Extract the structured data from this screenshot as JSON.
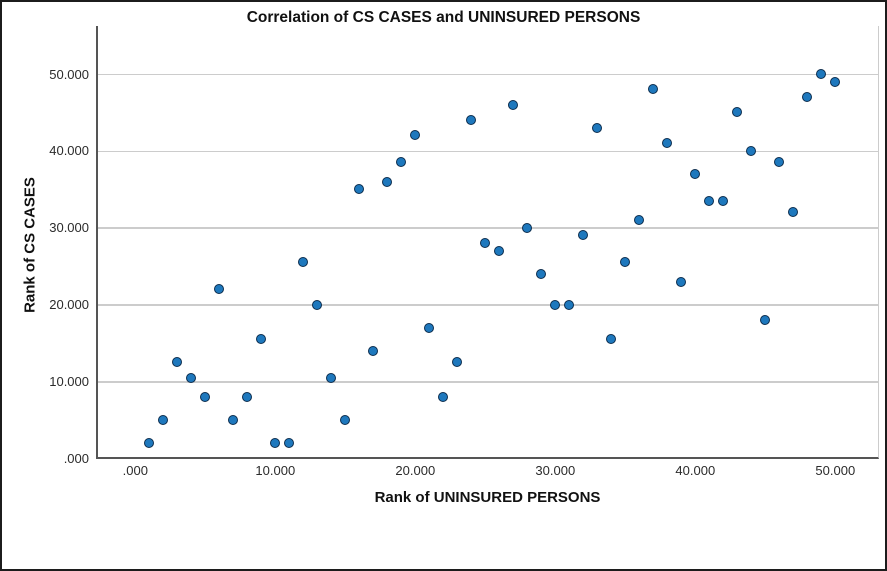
{
  "chart_data": {
    "type": "scatter",
    "title": "Correlation of CS CASES and UNINSURED PERSONS",
    "xlabel": "Rank of UNINSURED PERSONS",
    "ylabel": "Rank of CS CASES",
    "x_tick_labels": [
      ".000",
      "10.000",
      "20.000",
      "30.000",
      "40.000",
      "50.000"
    ],
    "y_tick_labels": [
      ".000",
      "10.000",
      "20.000",
      "30.000",
      "40.000",
      "50.000"
    ],
    "x_tick_values": [
      0,
      10,
      20,
      30,
      40,
      50
    ],
    "y_tick_values": [
      0,
      10,
      20,
      30,
      40,
      50
    ],
    "xlim": [
      -2.8,
      53.1
    ],
    "ylim": [
      0,
      56.3
    ],
    "grid": "horizontal-only",
    "legend": "none",
    "points": [
      [
        1,
        2
      ],
      [
        2,
        5
      ],
      [
        3,
        12.5
      ],
      [
        4,
        10.5
      ],
      [
        5,
        8
      ],
      [
        6,
        22
      ],
      [
        7,
        5
      ],
      [
        8,
        8
      ],
      [
        9,
        15.5
      ],
      [
        10,
        2
      ],
      [
        11,
        2
      ],
      [
        12,
        25.5
      ],
      [
        13,
        20
      ],
      [
        14,
        10.5
      ],
      [
        15,
        5
      ],
      [
        16,
        35
      ],
      [
        17,
        14
      ],
      [
        18,
        36
      ],
      [
        19,
        38.5
      ],
      [
        20,
        42
      ],
      [
        21,
        17
      ],
      [
        22,
        8
      ],
      [
        23,
        12.5
      ],
      [
        24,
        44
      ],
      [
        25,
        28
      ],
      [
        26,
        27
      ],
      [
        27,
        46
      ],
      [
        28,
        30
      ],
      [
        29,
        24
      ],
      [
        30,
        20
      ],
      [
        31,
        20
      ],
      [
        32,
        29
      ],
      [
        33,
        43
      ],
      [
        34,
        15.5
      ],
      [
        35,
        25.5
      ],
      [
        36,
        31
      ],
      [
        37,
        48
      ],
      [
        38,
        41
      ],
      [
        39,
        23
      ],
      [
        40,
        37
      ],
      [
        41,
        33.5
      ],
      [
        42,
        33.5
      ],
      [
        43,
        45
      ],
      [
        44,
        40
      ],
      [
        45,
        18
      ],
      [
        46,
        38.5
      ],
      [
        47,
        32
      ],
      [
        48,
        47
      ],
      [
        49,
        50
      ],
      [
        50,
        49
      ]
    ],
    "colors": {
      "marker_fill": "#1e78bd",
      "marker_stroke": "#0c2d4e",
      "gridline": "#cccccc",
      "axis_line": "#555555",
      "tick_text": "#2b2b2b",
      "title_text": "#111111"
    }
  }
}
